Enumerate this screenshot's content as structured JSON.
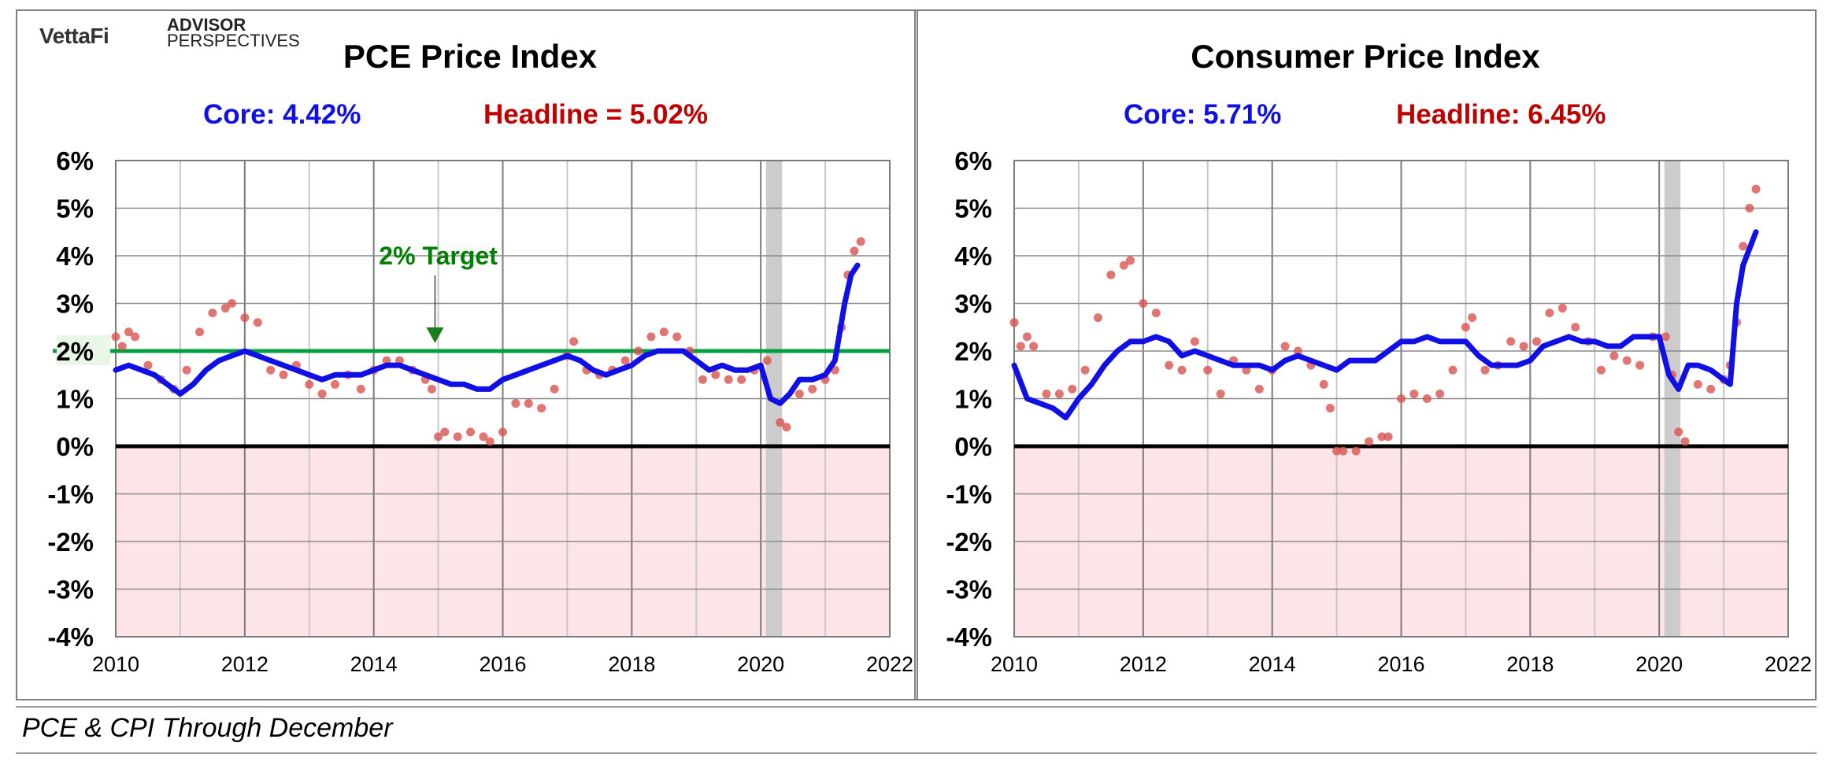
{
  "logos": {
    "vettafi": "VettaFi",
    "advisor_line1": "ADVISOR",
    "advisor_line2": "PERSPECTIVES"
  },
  "caption": "PCE & CPI Through December",
  "colors": {
    "core": "#1010e6",
    "headline": "#c00000",
    "dots": "#d9534f",
    "target": "#00a040",
    "target_text": "#008000",
    "negative_zone": "#fde4e6",
    "recession": "#cccccc"
  },
  "chart_data": [
    {
      "type": "line",
      "title": "PCE Price Index",
      "core_label": "Core: 4.42%",
      "headline_label": "Headline = 5.02%",
      "target_label": "2% Target",
      "target_value": 2,
      "ylim": [
        -4,
        6
      ],
      "xlim": [
        2010,
        2022
      ],
      "y_ticks": [
        "6%",
        "5%",
        "4%",
        "3%",
        "2%",
        "1%",
        "0%",
        "-1%",
        "-2%",
        "-3%",
        "-4%"
      ],
      "x_ticks": [
        "2010",
        "2012",
        "2014",
        "2016",
        "2018",
        "2020",
        "2022"
      ],
      "recession": [
        2020.08,
        2020.33
      ],
      "series": [
        {
          "name": "Core",
          "style": "line",
          "x": [
            2010.0,
            2010.2,
            2010.4,
            2010.6,
            2010.8,
            2011.0,
            2011.2,
            2011.4,
            2011.6,
            2011.8,
            2012.0,
            2012.2,
            2012.4,
            2012.6,
            2012.8,
            2013.0,
            2013.2,
            2013.4,
            2013.6,
            2013.8,
            2014.0,
            2014.2,
            2014.4,
            2014.6,
            2014.8,
            2015.0,
            2015.2,
            2015.4,
            2015.6,
            2015.8,
            2016.0,
            2016.2,
            2016.4,
            2016.6,
            2016.8,
            2017.0,
            2017.2,
            2017.4,
            2017.6,
            2017.8,
            2018.0,
            2018.2,
            2018.4,
            2018.6,
            2018.8,
            2019.0,
            2019.2,
            2019.4,
            2019.6,
            2019.8,
            2020.0,
            2020.15,
            2020.3,
            2020.45,
            2020.6,
            2020.8,
            2021.0,
            2021.15,
            2021.3,
            2021.4,
            2021.5
          ],
          "values": [
            1.6,
            1.7,
            1.6,
            1.5,
            1.3,
            1.1,
            1.3,
            1.6,
            1.8,
            1.9,
            2.0,
            1.9,
            1.8,
            1.7,
            1.6,
            1.5,
            1.4,
            1.5,
            1.5,
            1.5,
            1.6,
            1.7,
            1.7,
            1.6,
            1.5,
            1.4,
            1.3,
            1.3,
            1.2,
            1.2,
            1.4,
            1.5,
            1.6,
            1.7,
            1.8,
            1.9,
            1.8,
            1.6,
            1.5,
            1.6,
            1.7,
            1.9,
            2.0,
            2.0,
            2.0,
            1.8,
            1.6,
            1.7,
            1.6,
            1.6,
            1.7,
            1.0,
            0.9,
            1.1,
            1.4,
            1.4,
            1.5,
            1.8,
            3.0,
            3.6,
            3.8
          ]
        },
        {
          "name": "Headline",
          "style": "dots",
          "x": [
            2010.0,
            2010.1,
            2010.2,
            2010.3,
            2010.5,
            2010.7,
            2010.9,
            2011.1,
            2011.3,
            2011.5,
            2011.7,
            2011.8,
            2012.0,
            2012.2,
            2012.4,
            2012.6,
            2012.8,
            2013.0,
            2013.2,
            2013.4,
            2013.6,
            2013.8,
            2014.0,
            2014.2,
            2014.4,
            2014.6,
            2014.8,
            2014.9,
            2015.0,
            2015.1,
            2015.3,
            2015.5,
            2015.7,
            2015.8,
            2016.0,
            2016.2,
            2016.4,
            2016.6,
            2016.8,
            2017.0,
            2017.1,
            2017.3,
            2017.5,
            2017.7,
            2017.9,
            2018.1,
            2018.3,
            2018.5,
            2018.7,
            2018.9,
            2019.1,
            2019.3,
            2019.5,
            2019.7,
            2019.9,
            2020.1,
            2020.3,
            2020.4,
            2020.6,
            2020.8,
            2021.0,
            2021.15,
            2021.25,
            2021.35,
            2021.45,
            2021.55
          ],
          "values": [
            2.3,
            2.1,
            2.4,
            2.3,
            1.7,
            1.4,
            1.2,
            1.6,
            2.4,
            2.8,
            2.9,
            3.0,
            2.7,
            2.6,
            1.6,
            1.5,
            1.7,
            1.3,
            1.1,
            1.3,
            1.5,
            1.2,
            1.6,
            1.8,
            1.8,
            1.6,
            1.4,
            1.2,
            0.2,
            0.3,
            0.2,
            0.3,
            0.2,
            0.1,
            0.3,
            0.9,
            0.9,
            0.8,
            1.2,
            1.9,
            2.2,
            1.6,
            1.5,
            1.6,
            1.8,
            2.0,
            2.3,
            2.4,
            2.3,
            2.0,
            1.4,
            1.5,
            1.4,
            1.4,
            1.6,
            1.8,
            0.5,
            0.4,
            1.1,
            1.2,
            1.4,
            1.6,
            2.5,
            3.6,
            4.1,
            4.3
          ]
        }
      ]
    },
    {
      "type": "line",
      "title": "Consumer Price Index",
      "core_label": "Core: 5.71%",
      "headline_label": "Headline: 6.45%",
      "ylim": [
        -4,
        6
      ],
      "xlim": [
        2010,
        2022
      ],
      "y_ticks": [
        "6%",
        "5%",
        "4%",
        "3%",
        "2%",
        "1%",
        "0%",
        "-1%",
        "-2%",
        "-3%",
        "-4%"
      ],
      "x_ticks": [
        "2010",
        "2012",
        "2014",
        "2016",
        "2018",
        "2020",
        "2022"
      ],
      "recession": [
        2020.08,
        2020.33
      ],
      "series": [
        {
          "name": "Core",
          "style": "line",
          "x": [
            2010.0,
            2010.2,
            2010.4,
            2010.6,
            2010.8,
            2011.0,
            2011.2,
            2011.4,
            2011.6,
            2011.8,
            2012.0,
            2012.2,
            2012.4,
            2012.6,
            2012.8,
            2013.0,
            2013.2,
            2013.4,
            2013.6,
            2013.8,
            2014.0,
            2014.2,
            2014.4,
            2014.6,
            2014.8,
            2015.0,
            2015.2,
            2015.4,
            2015.6,
            2015.8,
            2016.0,
            2016.2,
            2016.4,
            2016.6,
            2016.8,
            2017.0,
            2017.2,
            2017.4,
            2017.6,
            2017.8,
            2018.0,
            2018.2,
            2018.4,
            2018.6,
            2018.8,
            2019.0,
            2019.2,
            2019.4,
            2019.6,
            2019.8,
            2020.0,
            2020.15,
            2020.3,
            2020.45,
            2020.6,
            2020.8,
            2021.0,
            2021.1,
            2021.2,
            2021.3,
            2021.5
          ],
          "values": [
            1.7,
            1.0,
            0.9,
            0.8,
            0.6,
            1.0,
            1.3,
            1.7,
            2.0,
            2.2,
            2.2,
            2.3,
            2.2,
            1.9,
            2.0,
            1.9,
            1.8,
            1.7,
            1.7,
            1.7,
            1.6,
            1.8,
            1.9,
            1.8,
            1.7,
            1.6,
            1.8,
            1.8,
            1.8,
            2.0,
            2.2,
            2.2,
            2.3,
            2.2,
            2.2,
            2.2,
            1.9,
            1.7,
            1.7,
            1.7,
            1.8,
            2.1,
            2.2,
            2.3,
            2.2,
            2.2,
            2.1,
            2.1,
            2.3,
            2.3,
            2.3,
            1.5,
            1.2,
            1.7,
            1.7,
            1.6,
            1.4,
            1.3,
            3.0,
            3.8,
            4.5
          ]
        },
        {
          "name": "Headline",
          "style": "dots",
          "x": [
            2010.0,
            2010.1,
            2010.2,
            2010.3,
            2010.5,
            2010.7,
            2010.9,
            2011.1,
            2011.3,
            2011.5,
            2011.7,
            2011.8,
            2012.0,
            2012.2,
            2012.4,
            2012.6,
            2012.8,
            2013.0,
            2013.2,
            2013.4,
            2013.6,
            2013.8,
            2014.0,
            2014.2,
            2014.4,
            2014.6,
            2014.8,
            2014.9,
            2015.0,
            2015.1,
            2015.3,
            2015.5,
            2015.7,
            2015.8,
            2016.0,
            2016.2,
            2016.4,
            2016.6,
            2016.8,
            2017.0,
            2017.1,
            2017.3,
            2017.5,
            2017.7,
            2017.9,
            2018.1,
            2018.3,
            2018.5,
            2018.7,
            2018.9,
            2019.1,
            2019.3,
            2019.5,
            2019.7,
            2019.9,
            2020.1,
            2020.2,
            2020.3,
            2020.4,
            2020.6,
            2020.8,
            2021.0,
            2021.1,
            2021.2,
            2021.3,
            2021.4,
            2021.5
          ],
          "values": [
            2.6,
            2.1,
            2.3,
            2.1,
            1.1,
            1.1,
            1.2,
            1.6,
            2.7,
            3.6,
            3.8,
            3.9,
            3.0,
            2.8,
            1.7,
            1.6,
            2.2,
            1.6,
            1.1,
            1.8,
            1.6,
            1.2,
            1.6,
            2.1,
            2.0,
            1.7,
            1.3,
            0.8,
            -0.1,
            -0.1,
            -0.1,
            0.1,
            0.2,
            0.2,
            1.0,
            1.1,
            1.0,
            1.1,
            1.6,
            2.5,
            2.7,
            1.6,
            1.7,
            2.2,
            2.1,
            2.2,
            2.8,
            2.9,
            2.5,
            2.2,
            1.6,
            1.9,
            1.8,
            1.7,
            2.3,
            2.3,
            1.5,
            0.3,
            0.1,
            1.3,
            1.2,
            1.4,
            1.7,
            2.6,
            4.2,
            5.0,
            5.4
          ]
        }
      ]
    }
  ]
}
